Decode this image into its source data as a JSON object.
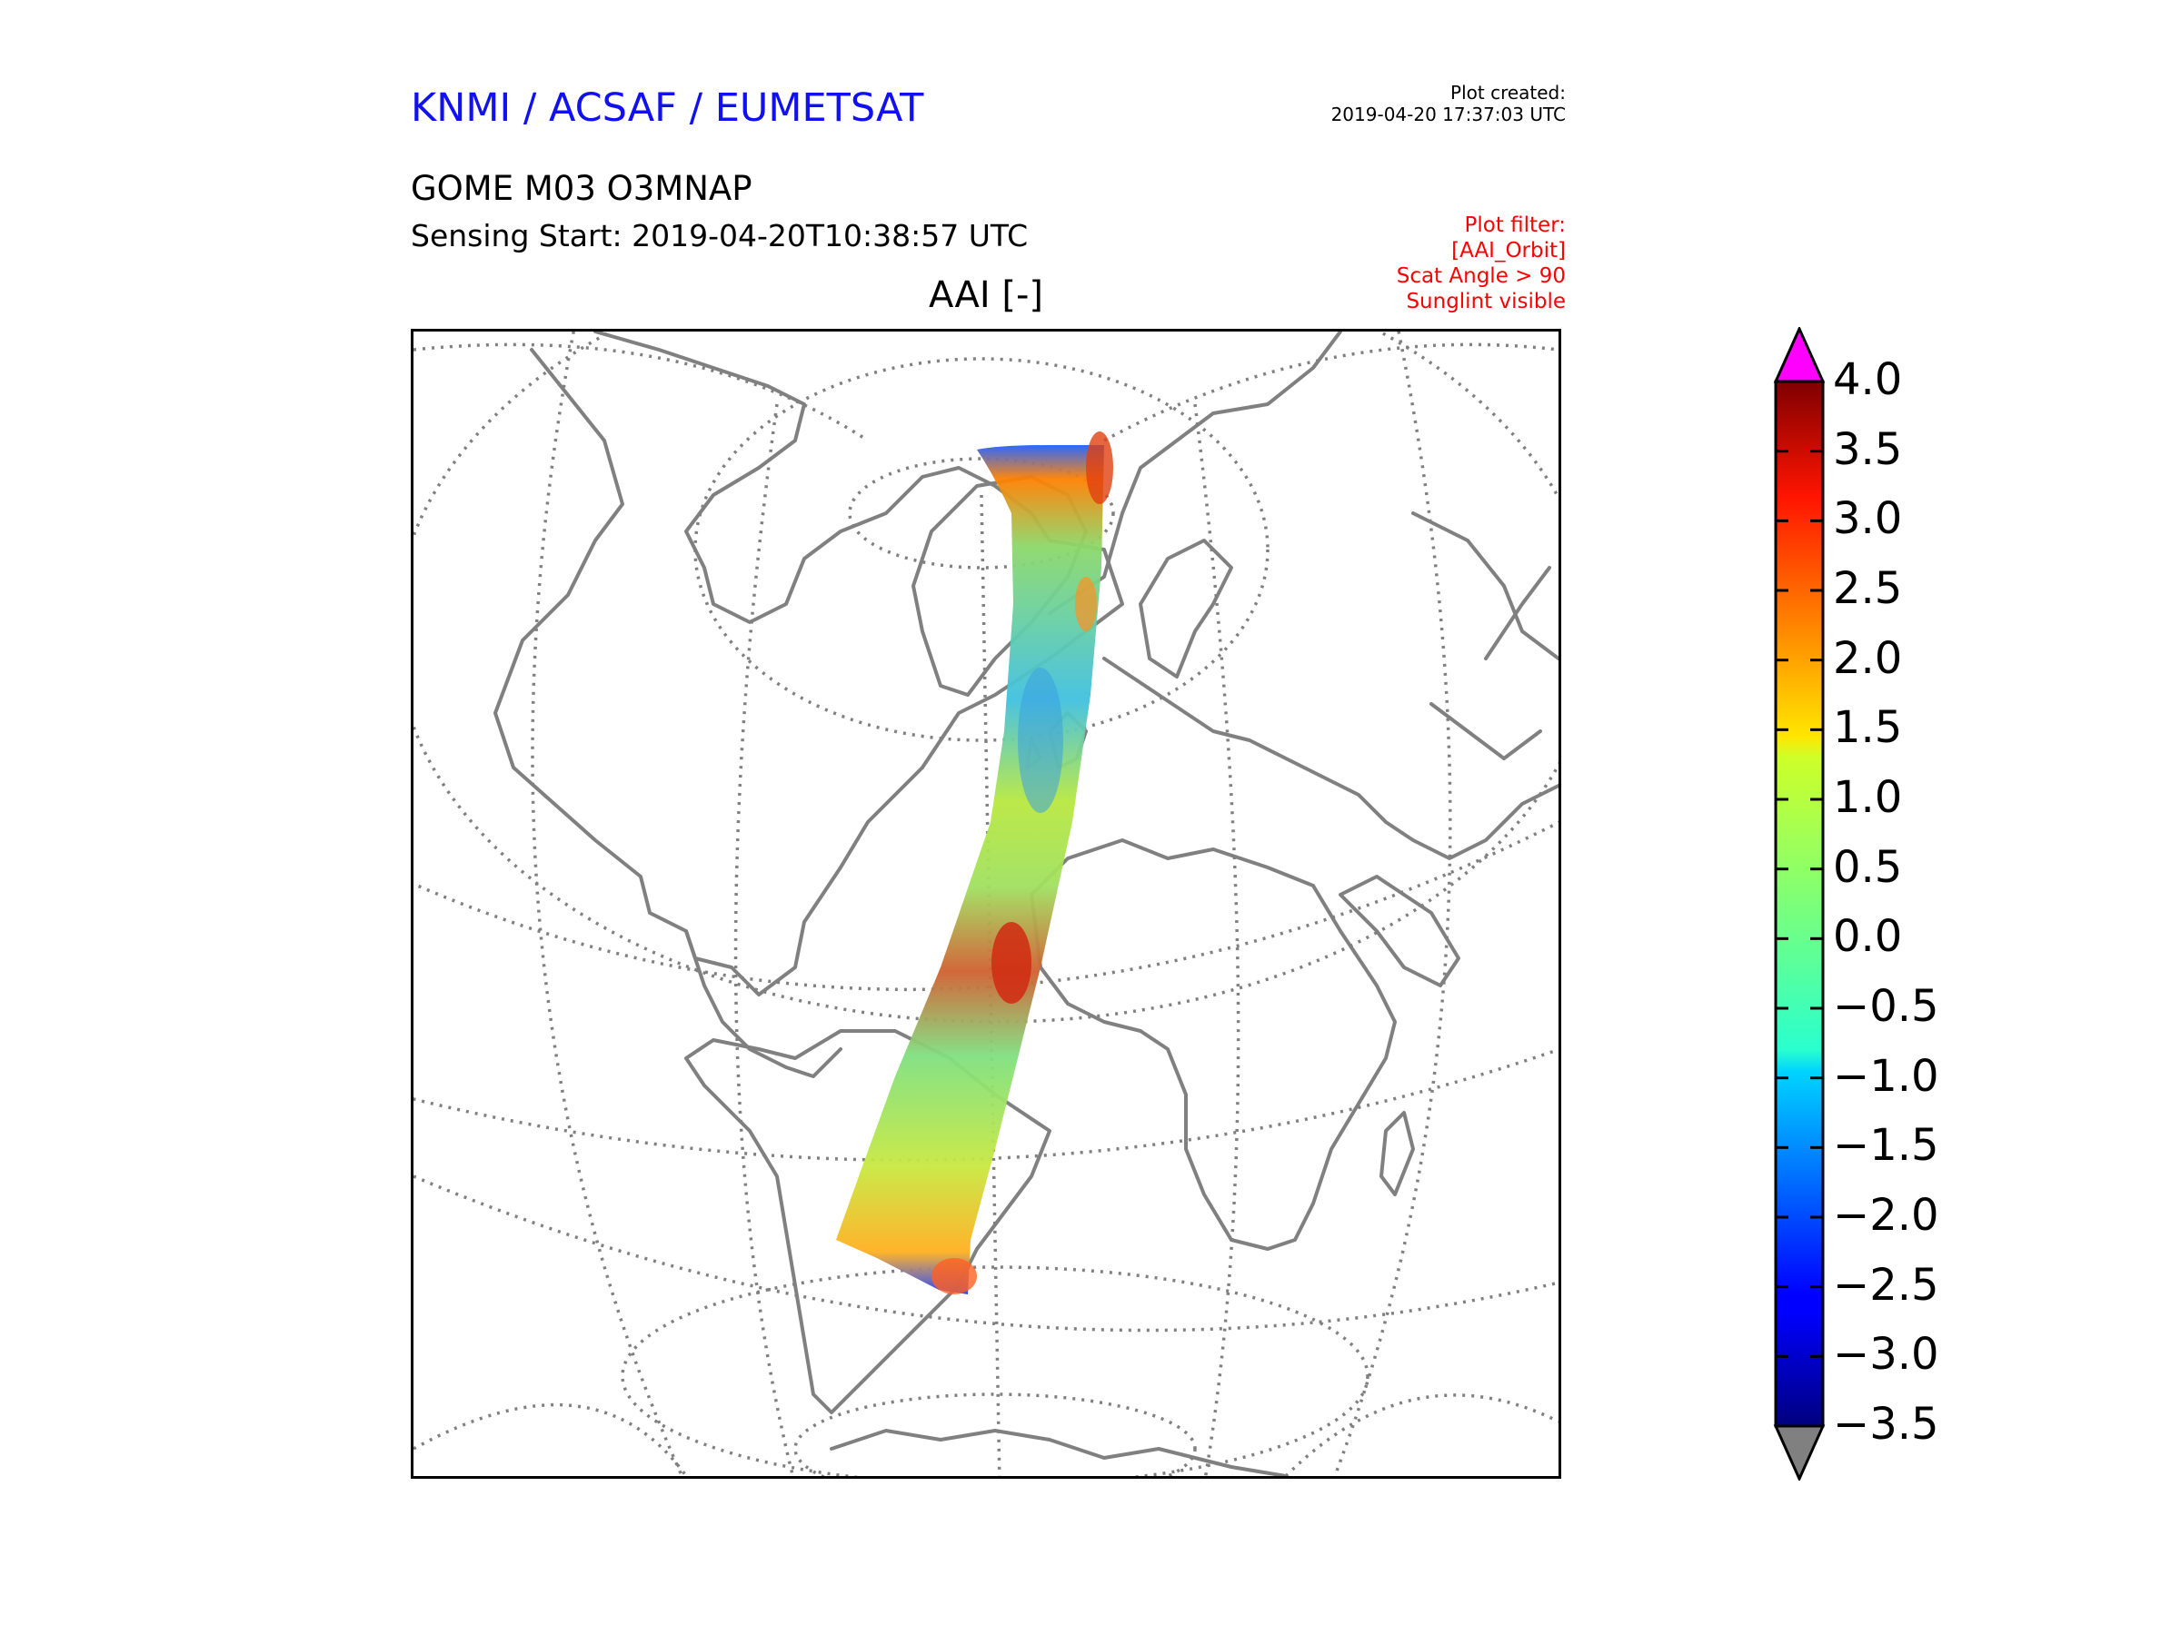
{
  "header": {
    "organization": "KNMI / ACSAF / EUMETSAT",
    "organization_color": "#1010f0",
    "plot_created_label": "Plot created:",
    "plot_created_value": "2019-04-20 17:37:03 UTC",
    "product": "GOME M03 O3MNAP",
    "sensing_start": "Sensing Start: 2019-04-20T10:38:57 UTC",
    "plot_filter": [
      "Plot filter:",
      "[AAI_Orbit]",
      "Scat Angle > 90",
      "Sunglint visible"
    ],
    "plot_filter_color": "#ff0000"
  },
  "map": {
    "title": "AAI [-]",
    "projection": "orthographic",
    "graticule": "dotted",
    "coastline_color": "#808080",
    "swath": "GOME single orbit swath over North Atlantic, Africa and South America"
  },
  "colorbar": {
    "min": -3.5,
    "max": 4.0,
    "ticks": [
      "4.0",
      "3.5",
      "3.0",
      "2.5",
      "2.0",
      "1.5",
      "1.0",
      "0.5",
      "0.0",
      "−0.5",
      "−1.0",
      "−1.5",
      "−2.0",
      "−2.5",
      "−3.0",
      "−3.5"
    ],
    "over_color": "#ff00ff",
    "under_color": "#808080",
    "colormap": "jet"
  }
}
